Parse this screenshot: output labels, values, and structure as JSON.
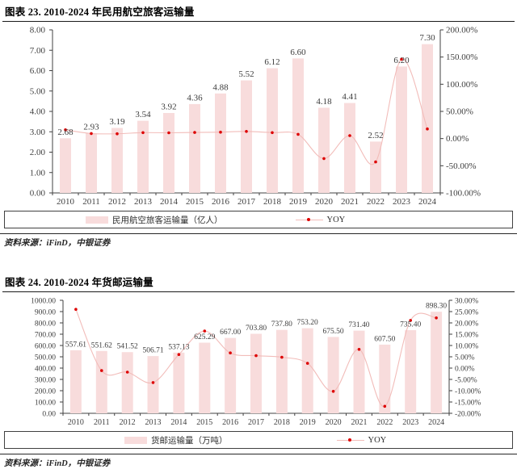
{
  "figures": [
    {
      "title": "图表 23. 2010-2024 年民用航空旅客运输量",
      "source": "资料来源：iFinD，中银证券"
    },
    {
      "title": "图表 24. 2010-2024 年货邮运输量",
      "source": "资料来源：iFinD，中银证券"
    }
  ],
  "colors": {
    "bar": "#f8dcdc",
    "line": "#f2bcb9",
    "marker": "#dd0000",
    "axis": "#404040",
    "axis_text": "#404040",
    "label_text": "#3d3d3d"
  },
  "chart_data": [
    {
      "type": "bar",
      "title": "图表 23. 2010-2024 年民用航空旅客运输量",
      "categories": [
        "2010",
        "2011",
        "2012",
        "2013",
        "2014",
        "2015",
        "2016",
        "2017",
        "2018",
        "2019",
        "2020",
        "2021",
        "2022",
        "2023",
        "2024"
      ],
      "series": [
        {
          "name": "民用航空旅客运输量（亿人）",
          "type": "bar",
          "axis": "left",
          "values": [
            2.68,
            2.93,
            3.19,
            3.54,
            3.92,
            4.36,
            4.88,
            5.52,
            6.12,
            6.6,
            4.18,
            4.41,
            2.52,
            6.2,
            7.3
          ],
          "labels": [
            "2.68",
            "2.93",
            "3.19",
            "3.54",
            "3.92",
            "4.36",
            "4.88",
            "5.52",
            "6.12",
            "6.60",
            "4.18",
            "4.41",
            "2.52",
            "6.20",
            "7.30"
          ]
        },
        {
          "name": "YOY",
          "type": "line",
          "axis": "right",
          "unit": "%",
          "values": [
            16.1,
            9.3,
            8.9,
            11.0,
            10.7,
            11.2,
            11.9,
            13.1,
            10.9,
            7.8,
            -36.7,
            5.5,
            -42.9,
            146.0,
            17.7
          ]
        }
      ],
      "left_axis": {
        "min": 0,
        "max": 8,
        "step": 1,
        "tick_labels": [
          "8.00",
          "7.00",
          "6.00",
          "5.00",
          "4.00",
          "3.00",
          "2.00",
          "1.00",
          "0.00"
        ]
      },
      "right_axis": {
        "min": -100,
        "max": 200,
        "step": 50,
        "tick_labels": [
          "200.00%",
          "150.00%",
          "100.00%",
          "50.00%",
          "0.00%",
          "-50.00%",
          "-100.00%"
        ]
      },
      "grid": false,
      "legend_position": "bottom"
    },
    {
      "type": "bar",
      "title": "图表 24. 2010-2024 年货邮运输量",
      "categories": [
        "2010",
        "2011",
        "2012",
        "2013",
        "2014",
        "2015",
        "2016",
        "2017",
        "2018",
        "2019",
        "2020",
        "2021",
        "2022",
        "2023",
        "2024"
      ],
      "series": [
        {
          "name": "货邮运输量（万吨）",
          "type": "bar",
          "axis": "left",
          "values": [
            557.61,
            551.62,
            541.52,
            506.71,
            537.13,
            625.29,
            667.0,
            703.8,
            737.8,
            753.2,
            675.5,
            731.4,
            607.5,
            735.4,
            898.3
          ],
          "labels": [
            "557.61",
            "551.62",
            "541.52",
            "506.71",
            "537.13",
            "625.29",
            "667.00",
            "703.80",
            "737.80",
            "753.20",
            "675.50",
            "731.40",
            "607.50",
            "735.40",
            "898.30"
          ]
        },
        {
          "name": "YOY",
          "type": "line",
          "axis": "right",
          "unit": "%",
          "values": [
            26.0,
            -1.1,
            -1.8,
            -6.4,
            6.0,
            16.4,
            6.7,
            5.5,
            4.8,
            2.1,
            -10.3,
            8.3,
            -16.9,
            21.1,
            22.2
          ]
        }
      ],
      "left_axis": {
        "min": 0,
        "max": 1000,
        "step": 100,
        "tick_labels": [
          "1000.00",
          "900.00",
          "800.00",
          "700.00",
          "600.00",
          "500.00",
          "400.00",
          "300.00",
          "200.00",
          "100.00",
          "0.00"
        ]
      },
      "right_axis": {
        "min": -20,
        "max": 30,
        "step": 5,
        "tick_labels": [
          "30.00%",
          "25.00%",
          "20.00%",
          "15.00%",
          "10.00%",
          "5.00%",
          "0.00%",
          "-5.00%",
          "-10.00%",
          "-15.00%",
          "-20.00%"
        ]
      },
      "grid": false,
      "legend_position": "bottom"
    }
  ]
}
